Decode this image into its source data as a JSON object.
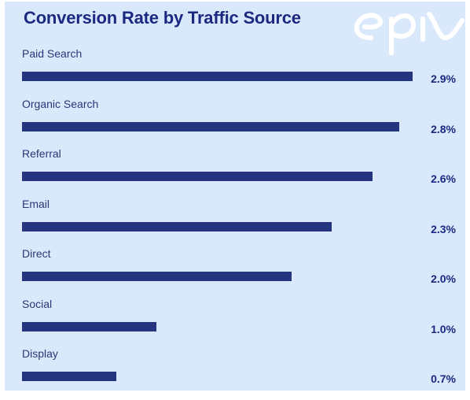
{
  "chart_data": {
    "type": "bar",
    "orientation": "horizontal",
    "title": "Conversion Rate by Traffic Source",
    "categories": [
      "Paid Search",
      "Organic Search",
      "Referral",
      "Email",
      "Direct",
      "Social",
      "Display"
    ],
    "values": [
      2.9,
      2.8,
      2.6,
      2.3,
      2.0,
      1.0,
      0.7
    ],
    "value_labels": [
      "2.9%",
      "2.8%",
      "2.6%",
      "2.3%",
      "2.0%",
      "1.0%",
      "0.7%"
    ],
    "xlabel": "",
    "ylabel": "",
    "xlim": [
      0,
      2.9
    ],
    "grid": false,
    "bar_color": "#24347f"
  },
  "logo": {
    "icon": "epi-logo-icon",
    "color": "#ffffff"
  },
  "colors": {
    "background": "#dae8fb",
    "title": "#1b2a80",
    "label": "#2a3677"
  }
}
